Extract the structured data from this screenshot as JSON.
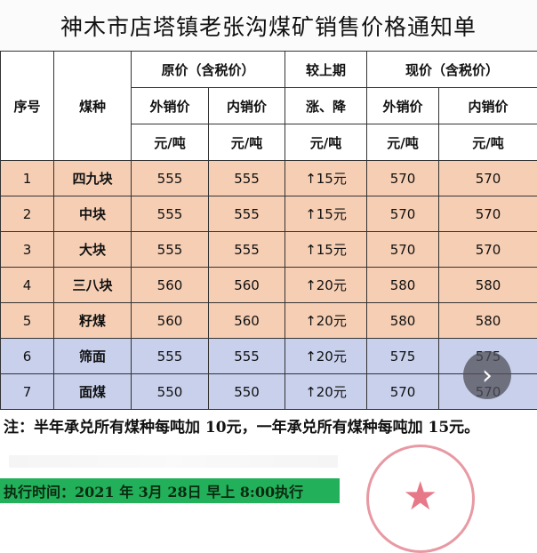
{
  "title": "神木市店塔镇老张沟煤矿销售价格通知单",
  "header": {
    "seq": "序号",
    "coal": "煤种",
    "orig": "原价（含税价）",
    "prev": "较上期",
    "now": "现价（含税价）",
    "ext": "外销价",
    "int": "内销价",
    "chg": "涨、降",
    "ext2": "外销价",
    "int2": "内销价",
    "unit": "元/吨"
  },
  "rows": [
    {
      "no": "1",
      "name": "四九块",
      "o_ext": "555",
      "o_int": "555",
      "chg": "↑15元",
      "n_ext": "570",
      "n_int": "570"
    },
    {
      "no": "2",
      "name": "中块",
      "o_ext": "555",
      "o_int": "555",
      "chg": "↑15元",
      "n_ext": "570",
      "n_int": "570"
    },
    {
      "no": "3",
      "name": "大块",
      "o_ext": "555",
      "o_int": "555",
      "chg": "↑15元",
      "n_ext": "570",
      "n_int": "570"
    },
    {
      "no": "4",
      "name": "三八块",
      "o_ext": "560",
      "o_int": "560",
      "chg": "↑20元",
      "n_ext": "580",
      "n_int": "580"
    },
    {
      "no": "5",
      "name": "籽煤",
      "o_ext": "560",
      "o_int": "560",
      "chg": "↑20元",
      "n_ext": "580",
      "n_int": "580"
    },
    {
      "no": "6",
      "name": "筛面",
      "o_ext": "555",
      "o_int": "555",
      "chg": "↑20元",
      "n_ext": "575",
      "n_int": "575"
    },
    {
      "no": "7",
      "name": "面煤",
      "o_ext": "550",
      "o_int": "550",
      "chg": "↑20元",
      "n_ext": "570",
      "n_int": "570"
    }
  ],
  "note": "注：半年承兑所有煤种每吨加 10元，一年承兑所有煤种每吨加 15元。",
  "exec": "执行时间：2021 年 3月 28日  早上 8:00执行",
  "colors": {
    "peach": "#f6ceb4",
    "blue": "#c8d0ec",
    "green": "#22b05a",
    "stamp": "#e37f8c"
  },
  "next_icon": "chevron-right-icon"
}
